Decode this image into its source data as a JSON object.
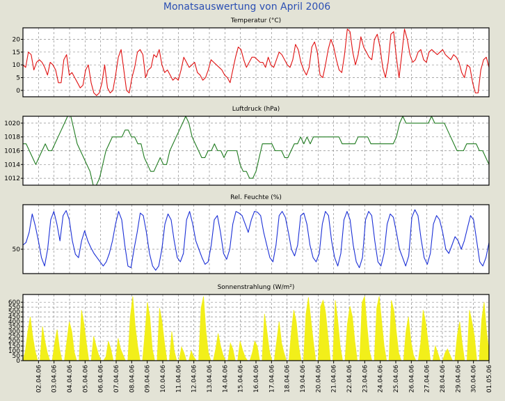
{
  "page": {
    "title": "Monatsauswertung von April 2006"
  },
  "colors": {
    "background": "#e3e3d6",
    "plot_bg": "#ffffff",
    "grid": "#8c8c8c",
    "title": "#2b4fb3"
  },
  "chart_data": [
    {
      "type": "line",
      "title": "Temperatur (°C)",
      "color": "#e01010",
      "ylim": [
        -2.5,
        24.5
      ],
      "yticks": [
        0,
        5,
        10,
        15,
        20
      ],
      "ytick_labels": [
        "0",
        "5",
        "10",
        "15",
        "20"
      ],
      "grid": true,
      "series": [
        {
          "values": [
            10,
            9,
            15,
            14,
            8,
            11,
            12,
            11,
            9,
            6,
            11,
            10,
            8,
            3,
            3,
            12,
            14,
            6,
            7,
            5,
            3,
            1,
            2,
            8,
            10,
            3,
            -1,
            -2,
            -1,
            3,
            10,
            1,
            -1,
            0,
            6,
            13,
            16,
            8,
            0,
            -1,
            5,
            9,
            15,
            16,
            14,
            5,
            8,
            9,
            14,
            13,
            16,
            10,
            7,
            8,
            6,
            4,
            5,
            4,
            8,
            13,
            11,
            9,
            10,
            11,
            7,
            6,
            4,
            5,
            8,
            12,
            11,
            10,
            9,
            8,
            6,
            5,
            3,
            8,
            13,
            17,
            16,
            12,
            9,
            11,
            13,
            13,
            12,
            11,
            11,
            9,
            13,
            10,
            9,
            12,
            15,
            14,
            12,
            10,
            9,
            12,
            18,
            16,
            11,
            8,
            6,
            9,
            17,
            19,
            15,
            6,
            5,
            10,
            16,
            20,
            17,
            12,
            8,
            7,
            14,
            24,
            23,
            15,
            10,
            14,
            21,
            17,
            15,
            13,
            12,
            20,
            22,
            17,
            9,
            5,
            11,
            22,
            23,
            13,
            5,
            14,
            24,
            20,
            14,
            11,
            12,
            15,
            16,
            12,
            11,
            15,
            16,
            15,
            14,
            15,
            16,
            14,
            13,
            12,
            14,
            13,
            11,
            7,
            5,
            10,
            9,
            3,
            -1,
            -1,
            8,
            12,
            13,
            9
          ]
        }
      ]
    },
    {
      "type": "line",
      "title": "Luftdruck (hPa)",
      "color": "#1e7a1e",
      "ylim": [
        1011,
        1021
      ],
      "yticks": [
        1012,
        1014,
        1016,
        1018,
        1020
      ],
      "ytick_labels": [
        "1012",
        "1014",
        "1016",
        "1018",
        "1020"
      ],
      "grid": true,
      "series": [
        {
          "values": [
            1017,
            1017,
            1016,
            1015,
            1014,
            1015,
            1016,
            1017,
            1016,
            1016,
            1017,
            1018,
            1019,
            1020,
            1021,
            1021,
            1019,
            1017,
            1016,
            1015,
            1014,
            1013,
            1011,
            1011,
            1012,
            1014,
            1016,
            1017,
            1018,
            1018,
            1018,
            1018,
            1019,
            1019,
            1018,
            1018,
            1017,
            1017,
            1015,
            1014,
            1013,
            1013,
            1014,
            1015,
            1014,
            1014,
            1016,
            1017,
            1018,
            1019,
            1020,
            1021,
            1020,
            1018,
            1017,
            1016,
            1015,
            1015,
            1016,
            1016,
            1017,
            1016,
            1016,
            1015,
            1016,
            1016,
            1016,
            1016,
            1014,
            1013,
            1013,
            1012,
            1012,
            1013,
            1015,
            1017,
            1017,
            1017,
            1017,
            1016,
            1016,
            1016,
            1015,
            1015,
            1016,
            1017,
            1017,
            1018,
            1017,
            1018,
            1017,
            1018,
            1018,
            1018,
            1018,
            1018,
            1018,
            1018,
            1018,
            1018,
            1017,
            1017,
            1017,
            1017,
            1017,
            1018,
            1018,
            1018,
            1018,
            1017,
            1017,
            1017,
            1017,
            1017,
            1017,
            1017,
            1017,
            1018,
            1020,
            1021,
            1020,
            1020,
            1020,
            1020,
            1020,
            1020,
            1020,
            1020,
            1021,
            1020,
            1020,
            1020,
            1020,
            1019,
            1018,
            1017,
            1016,
            1016,
            1016,
            1017,
            1017,
            1017,
            1017,
            1016,
            1016,
            1015,
            1014
          ]
        }
      ]
    },
    {
      "type": "line",
      "title": "Rel. Feuchte (%)",
      "color": "#1a2fd6",
      "ylim": [
        21,
        103
      ],
      "yticks": [
        50
      ],
      "ytick_labels": [
        "50"
      ],
      "grid": true,
      "series": [
        {
          "values": [
            55,
            58,
            70,
            92,
            78,
            60,
            40,
            30,
            50,
            85,
            95,
            80,
            60,
            90,
            96,
            85,
            60,
            44,
            40,
            60,
            72,
            60,
            52,
            45,
            40,
            35,
            30,
            35,
            45,
            60,
            80,
            95,
            85,
            55,
            30,
            28,
            50,
            70,
            93,
            90,
            70,
            45,
            30,
            25,
            30,
            50,
            80,
            92,
            85,
            60,
            40,
            35,
            45,
            85,
            95,
            80,
            60,
            50,
            40,
            32,
            35,
            55,
            85,
            90,
            70,
            45,
            38,
            50,
            80,
            95,
            93,
            90,
            80,
            70,
            85,
            95,
            94,
            90,
            70,
            55,
            40,
            35,
            55,
            90,
            95,
            88,
            70,
            50,
            42,
            55,
            90,
            93,
            80,
            55,
            40,
            35,
            45,
            80,
            95,
            90,
            60,
            40,
            30,
            45,
            85,
            95,
            85,
            55,
            35,
            28,
            40,
            85,
            95,
            90,
            60,
            35,
            30,
            45,
            80,
            92,
            88,
            70,
            50,
            40,
            30,
            42,
            88,
            97,
            90,
            62,
            40,
            32,
            45,
            80,
            90,
            85,
            70,
            50,
            45,
            55,
            65,
            60,
            50,
            60,
            75,
            90,
            85,
            60,
            35,
            30,
            40,
            58
          ]
        }
      ]
    },
    {
      "type": "area",
      "title": "Sonnenstrahlung (W/m²)",
      "color": "#f2ef1a",
      "ylim": [
        0,
        680
      ],
      "yticks": [
        0,
        50,
        100,
        150,
        200,
        250,
        300,
        350,
        400,
        450,
        500,
        550,
        600
      ],
      "ytick_labels": [
        "0",
        "50",
        "100",
        "150",
        "200",
        "250",
        "300",
        "350",
        "400",
        "450",
        "500",
        "550",
        "600"
      ],
      "grid": true,
      "x_labels": [
        "02.04.06",
        "03.04.06",
        "04.04.06",
        "05.04.06",
        "06.04.06",
        "07.04.06",
        "08.04.06",
        "09.04.06",
        "10.04.06",
        "11.04.06",
        "12.04.06",
        "13.04.06",
        "14.04.06",
        "15.04.06",
        "16.04.06",
        "17.04.06",
        "18.04.06",
        "19.04.06",
        "20.04.06",
        "21.04.06",
        "22.04.06",
        "23.04.06",
        "24.04.06",
        "25.04.06",
        "26.04.06",
        "27.04.06",
        "28.04.06",
        "29.04.06",
        "30.04.06",
        "01.05.06"
      ],
      "series": [
        {
          "values": [
            0,
            100,
            300,
            450,
            250,
            100,
            0,
            0,
            350,
            200,
            80,
            0,
            0,
            180,
            320,
            120,
            0,
            0,
            200,
            400,
            300,
            90,
            0,
            0,
            520,
            380,
            180,
            0,
            0,
            250,
            150,
            60,
            0,
            0,
            40,
            200,
            120,
            0,
            0,
            230,
            120,
            60,
            0,
            0,
            450,
            660,
            350,
            150,
            0,
            0,
            280,
            600,
            450,
            120,
            0,
            0,
            540,
            400,
            180,
            0,
            0,
            300,
            100,
            0,
            0,
            140,
            80,
            0,
            0,
            100,
            40,
            0,
            0,
            540,
            660,
            300,
            80,
            0,
            0,
            120,
            280,
            150,
            60,
            0,
            0,
            180,
            120,
            0,
            0,
            200,
            110,
            40,
            0,
            0,
            80,
            200,
            150,
            0,
            0,
            480,
            300,
            100,
            0,
            0,
            200,
            400,
            180,
            80,
            0,
            0,
            300,
            520,
            400,
            150,
            0,
            0,
            480,
            650,
            420,
            200,
            0,
            0,
            560,
            620,
            500,
            250,
            0,
            0,
            620,
            420,
            150,
            0,
            0,
            380,
            560,
            450,
            200,
            0,
            0,
            600,
            660,
            360,
            100,
            0,
            0,
            540,
            660,
            400,
            150,
            0,
            0,
            620,
            520,
            300,
            80,
            0,
            0,
            300,
            450,
            200,
            60,
            0,
            0,
            180,
            520,
            400,
            200,
            0,
            0,
            150,
            80,
            0,
            0,
            80,
            120,
            60,
            0,
            0,
            260,
            400,
            180,
            0,
            0,
            520,
            400,
            250,
            0,
            0,
            420,
            600,
            300,
            100
          ]
        }
      ]
    }
  ]
}
